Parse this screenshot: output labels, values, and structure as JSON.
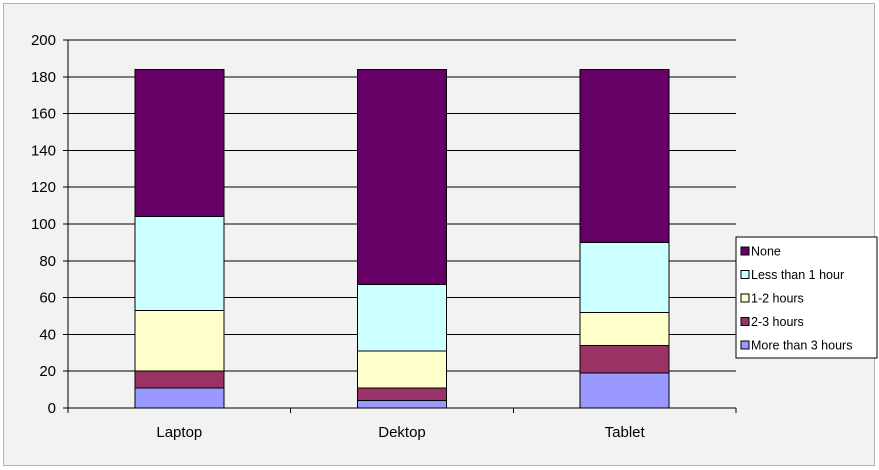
{
  "chart_data": {
    "type": "bar",
    "stacked": true,
    "categories": [
      "Laptop",
      "Dektop",
      "Tablet"
    ],
    "series": [
      {
        "name": "More than 3 hours",
        "color": "#9999ff",
        "values": [
          11,
          4,
          19
        ]
      },
      {
        "name": "2-3 hours",
        "color": "#993366",
        "values": [
          9,
          7,
          15
        ]
      },
      {
        "name": "1-2 hours",
        "color": "#ffffcc",
        "values": [
          33,
          20,
          18
        ]
      },
      {
        "name": "Less than 1 hour",
        "color": "#ccffff",
        "values": [
          51,
          36,
          38
        ]
      },
      {
        "name": "None",
        "color": "#660066",
        "values": [
          80,
          117,
          94
        ]
      }
    ],
    "ylim": [
      0,
      200
    ],
    "yticks": [
      0,
      20,
      40,
      60,
      80,
      100,
      120,
      140,
      160,
      180,
      200
    ],
    "grid": true,
    "legend_position": "right",
    "legend_order": [
      "None",
      "Less than 1 hour",
      "1-2 hours",
      "2-3 hours",
      "More than 3 hours"
    ]
  }
}
